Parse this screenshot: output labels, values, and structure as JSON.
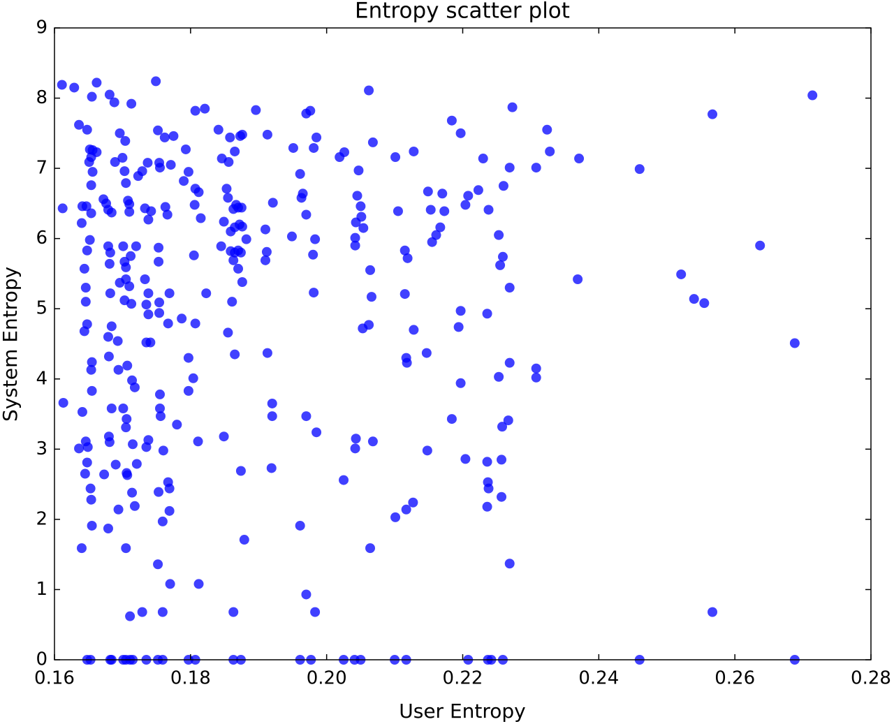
{
  "chart_data": {
    "type": "scatter",
    "title": "Entropy scatter plot",
    "xlabel": "User Entropy",
    "ylabel": "System Entropy",
    "color": "#0000ff",
    "xlim": [
      0.16,
      0.28
    ],
    "ylim": [
      0,
      9
    ],
    "xticks": [
      0.16,
      0.18,
      {
        "value": 0.2,
        "label": "0.20"
      },
      0.22,
      0.24,
      0.26,
      0.28
    ],
    "yticks": [
      0,
      1,
      2,
      3,
      4,
      5,
      6,
      7,
      8,
      9
    ],
    "x": [
      0.1611,
      0.1629,
      0.1662,
      0.1681,
      0.1688,
      0.1713,
      0.1749,
      0.1655,
      0.1612,
      0.1636,
      0.1648,
      0.1641,
      0.164,
      0.1652,
      0.1656,
      0.1654,
      0.1662,
      0.1651,
      0.1656,
      0.1654,
      0.1647,
      0.1654,
      0.1652,
      0.1648,
      0.1644,
      0.1646,
      0.1646,
      0.1648,
      0.1644,
      0.1655,
      0.1654,
      0.1655,
      0.1641,
      0.1636,
      0.1646,
      0.1649,
      0.1648,
      0.1645,
      0.1653,
      0.1654,
      0.1655,
      0.164,
      0.1613,
      0.1672,
      0.1676,
      0.1679,
      0.1684,
      0.1689,
      0.1696,
      0.1704,
      0.17,
      0.1703,
      0.1705,
      0.1708,
      0.171,
      0.171,
      0.1679,
      0.1682,
      0.1681,
      0.1701,
      0.1703,
      0.1705,
      0.1712,
      0.172,
      0.1705,
      0.171,
      0.1696,
      0.1703,
      0.1713,
      0.1682,
      0.1684,
      0.1679,
      0.168,
      0.1693,
      0.1694,
      0.1707,
      0.1714,
      0.1718,
      0.1684,
      0.1701,
      0.1706,
      0.1705,
      0.168,
      0.1681,
      0.169,
      0.1673,
      0.1715,
      0.1721,
      0.1707,
      0.1714,
      0.1718,
      0.1694,
      0.1679,
      0.1705,
      0.1711,
      0.1706,
      0.1733,
      0.1738,
      0.1742,
      0.1733,
      0.1735,
      0.1738,
      0.1741,
      0.1735,
      0.1738,
      0.1723,
      0.1729,
      0.1737,
      0.1752,
      0.1755,
      0.1762,
      0.1771,
      0.1754,
      0.1753,
      0.1753,
      0.1754,
      0.1754,
      0.1763,
      0.1766,
      0.1769,
      0.1767,
      0.1755,
      0.1755,
      0.176,
      0.1738,
      0.1735,
      0.1756,
      0.1767,
      0.1769,
      0.1759,
      0.1769,
      0.1752,
      0.1753,
      0.177,
      0.1759,
      0.1729,
      0.1775,
      0.1793,
      0.1797,
      0.179,
      0.1807,
      0.1821,
      0.1807,
      0.1812,
      0.1806,
      0.1815,
      0.1805,
      0.1807,
      0.1823,
      0.1797,
      0.1804,
      0.1797,
      0.1811,
      0.178,
      0.1787,
      0.1812,
      0.1841,
      0.1846,
      0.1858,
      0.1856,
      0.1865,
      0.1873,
      0.1876,
      0.1853,
      0.1855,
      0.1863,
      0.1867,
      0.187,
      0.1875,
      0.1849,
      0.1859,
      0.1865,
      0.1872,
      0.1876,
      0.1882,
      0.1845,
      0.1859,
      0.1865,
      0.187,
      0.1874,
      0.1863,
      0.187,
      0.1876,
      0.1861,
      0.1855,
      0.1865,
      0.1849,
      0.1874,
      0.1879,
      0.1863,
      0.1896,
      0.1913,
      0.1921,
      0.191,
      0.1912,
      0.191,
      0.1913,
      0.192,
      0.192,
      0.1919,
      0.1951,
      0.1949,
      0.1961,
      0.1963,
      0.1965,
      0.197,
      0.197,
      0.1976,
      0.1981,
      0.1985,
      0.198,
      0.1983,
      0.1981,
      0.197,
      0.1985,
      0.1961,
      0.197,
      0.1983,
      0.2026,
      0.2019,
      0.2045,
      0.2047,
      0.205,
      0.2051,
      0.2043,
      0.2054,
      0.2042,
      0.2042,
      0.2062,
      0.2068,
      0.2064,
      0.2066,
      0.2053,
      0.2062,
      0.2043,
      0.2042,
      0.2068,
      0.2025,
      0.2064,
      0.2101,
      0.2105,
      0.2128,
      0.2115,
      0.2119,
      0.2115,
      0.2117,
      0.2118,
      0.2128,
      0.2147,
      0.2149,
      0.2153,
      0.2155,
      0.2161,
      0.2167,
      0.217,
      0.2173,
      0.2148,
      0.2101,
      0.2117,
      0.2127,
      0.2184,
      0.2197,
      0.2204,
      0.2208,
      0.2223,
      0.223,
      0.2238,
      0.2197,
      0.2194,
      0.2197,
      0.2184,
      0.2204,
      0.2236,
      0.2236,
      0.2237,
      0.2238,
      0.2236,
      0.2253,
      0.2259,
      0.2255,
      0.226,
      0.2269,
      0.2273,
      0.2269,
      0.2269,
      0.2253,
      0.2267,
      0.2258,
      0.2257,
      0.2257,
      0.2269,
      0.2308,
      0.2324,
      0.2328,
      0.2371,
      0.2369,
      0.246,
      0.2521,
      0.254,
      0.2555,
      0.2567,
      0.2637,
      0.2714,
      0.2688,
      0.2567,
      0.2308,
      0.2308,
      0.1648,
      0.1653,
      0.1682,
      0.1684,
      0.1701,
      0.1705,
      0.1711,
      0.1715,
      0.1735,
      0.1752,
      0.1759,
      0.1797,
      0.1807,
      0.1863,
      0.1874,
      0.1961,
      0.1977,
      0.2025,
      0.2041,
      0.205,
      0.21,
      0.2117,
      0.2208,
      0.2237,
      0.2242,
      0.2259,
      0.246,
      0.2688
    ],
    "y": [
      8.19,
      8.15,
      8.22,
      8.05,
      7.94,
      7.92,
      8.24,
      8.02,
      6.43,
      7.62,
      7.55,
      6.46,
      6.22,
      7.27,
      7.26,
      7.16,
      7.23,
      7.09,
      6.95,
      6.76,
      6.46,
      6.36,
      5.98,
      5.83,
      5.57,
      5.3,
      5.1,
      4.78,
      4.68,
      4.24,
      4.13,
      3.83,
      3.53,
      3.01,
      3.11,
      3.03,
      2.81,
      2.65,
      2.44,
      2.28,
      1.91,
      1.59,
      3.66,
      6.56,
      6.5,
      6.41,
      6.37,
      7.09,
      7.5,
      7.39,
      7.15,
      6.96,
      6.79,
      6.54,
      6.49,
      6.38,
      5.89,
      5.8,
      5.64,
      5.89,
      5.67,
      5.59,
      5.75,
      5.89,
      5.42,
      5.32,
      5.37,
      5.12,
      5.07,
      5.22,
      4.75,
      4.6,
      4.32,
      4.54,
      4.13,
      4.19,
      3.98,
      3.88,
      3.58,
      3.58,
      3.43,
      3.31,
      3.18,
      3.1,
      2.78,
      2.64,
      3.07,
      2.79,
      2.63,
      2.38,
      2.19,
      2.14,
      1.87,
      1.59,
      0.62,
      2.66,
      6.43,
      6.27,
      6.39,
      5.42,
      5.06,
      5.22,
      4.52,
      4.52,
      4.92,
      6.89,
      6.96,
      7.08,
      7.54,
      7.01,
      7.44,
      7.05,
      7.08,
      5.87,
      5.67,
      5.09,
      4.94,
      6.45,
      6.34,
      5.22,
      4.79,
      3.78,
      3.58,
      2.98,
      3.13,
      3.03,
      3.47,
      2.53,
      2.44,
      1.97,
      2.12,
      1.36,
      2.39,
      1.08,
      0.68,
      0.68,
      7.46,
      7.27,
      6.95,
      6.82,
      7.82,
      7.85,
      6.71,
      6.66,
      6.48,
      6.29,
      5.76,
      4.79,
      5.22,
      4.3,
      4.01,
      3.83,
      3.11,
      3.35,
      4.86,
      1.08,
      7.55,
      7.14,
      7.44,
      7.09,
      7.24,
      7.46,
      7.48,
      6.71,
      6.58,
      6.42,
      6.48,
      6.44,
      6.44,
      6.24,
      6.1,
      6.16,
      6.2,
      6.17,
      5.99,
      5.89,
      5.82,
      5.8,
      5.83,
      5.8,
      5.69,
      5.57,
      5.38,
      5.1,
      4.66,
      4.35,
      3.18,
      2.69,
      1.71,
      0.68,
      7.83,
      7.48,
      6.51,
      6.13,
      5.81,
      5.69,
      4.37,
      3.65,
      3.47,
      2.73,
      7.29,
      6.03,
      6.92,
      6.58,
      6.64,
      6.34,
      7.78,
      7.82,
      7.29,
      7.44,
      5.77,
      5.99,
      5.23,
      3.47,
      3.24,
      1.91,
      0.93,
      0.68,
      7.23,
      7.16,
      6.61,
      6.97,
      6.46,
      6.31,
      6.23,
      6.15,
      6.01,
      5.9,
      8.11,
      7.37,
      5.55,
      5.17,
      4.72,
      4.77,
      3.15,
      3.01,
      3.11,
      2.56,
      1.59,
      7.16,
      6.39,
      7.24,
      5.83,
      5.72,
      5.21,
      4.3,
      4.23,
      4.7,
      4.37,
      6.67,
      6.41,
      5.95,
      6.05,
      6.16,
      6.64,
      6.39,
      2.98,
      2.03,
      2.14,
      2.24,
      7.68,
      7.5,
      6.48,
      6.61,
      6.69,
      7.14,
      6.41,
      4.97,
      4.74,
      3.94,
      3.43,
      2.86,
      4.93,
      2.82,
      2.53,
      2.44,
      2.18,
      6.05,
      5.74,
      5.62,
      6.75,
      7.01,
      7.87,
      5.3,
      4.23,
      4.03,
      3.41,
      3.32,
      2.85,
      2.32,
      1.37,
      7.01,
      7.55,
      7.24,
      7.14,
      5.42,
      6.99,
      5.49,
      5.14,
      5.08,
      7.77,
      5.9,
      8.04,
      4.51,
      0.68,
      4.15,
      4.02,
      0,
      0,
      0,
      0,
      0,
      0,
      0,
      0,
      0,
      0,
      0,
      0,
      0,
      0,
      0,
      0,
      0,
      0,
      0,
      0,
      0,
      0,
      0,
      0,
      0,
      0,
      0,
      0
    ]
  }
}
